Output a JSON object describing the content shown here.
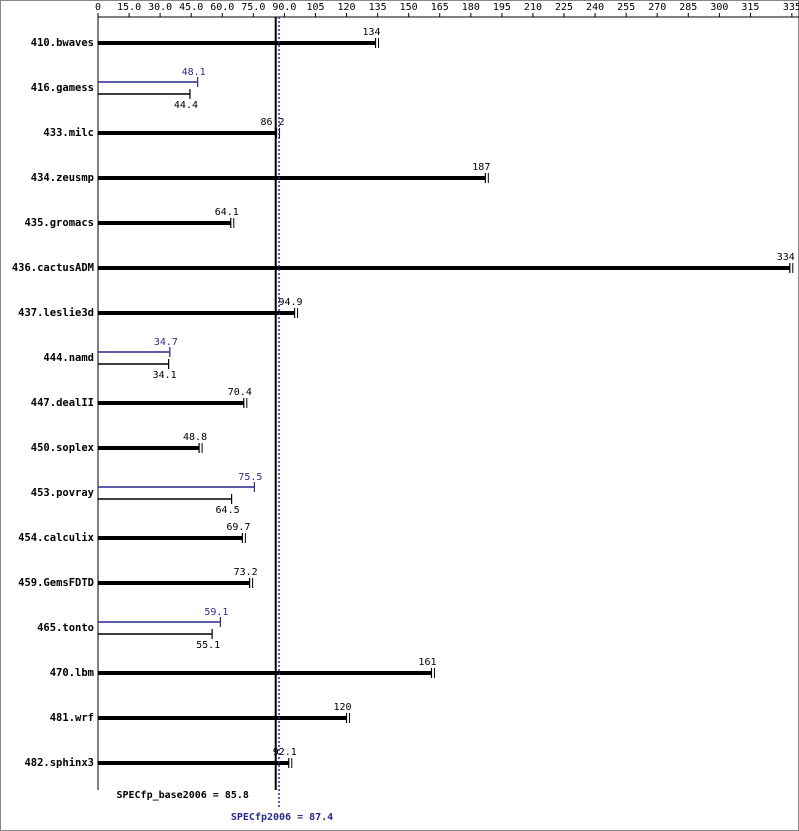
{
  "chart_data": {
    "type": "bar",
    "orientation": "horizontal",
    "categories": [
      "410.bwaves",
      "416.gamess",
      "433.milc",
      "434.zeusmp",
      "435.gromacs",
      "436.cactusADM",
      "437.leslie3d",
      "444.namd",
      "447.dealII",
      "450.soplex",
      "453.povray",
      "454.calculix",
      "459.GemsFDTD",
      "465.tonto",
      "470.lbm",
      "481.wrf",
      "482.sphinx3"
    ],
    "series": [
      {
        "role": "peak",
        "color": "#2a2a8c",
        "values": [
          null,
          48.1,
          null,
          null,
          null,
          null,
          null,
          34.7,
          null,
          null,
          75.5,
          null,
          null,
          59.1,
          null,
          null,
          null
        ]
      },
      {
        "role": "base",
        "color": "#000000",
        "values": [
          134,
          44.4,
          86.2,
          187,
          64.1,
          334,
          94.9,
          34.1,
          70.4,
          48.8,
          64.5,
          69.7,
          73.2,
          55.1,
          161,
          120,
          92.1
        ]
      }
    ],
    "xlim": [
      0,
      337
    ],
    "xticks": [
      0,
      {
        "value": 15,
        "label": "15.0"
      },
      {
        "value": 30,
        "label": "30.0"
      },
      {
        "value": 45,
        "label": "45.0"
      },
      {
        "value": 60,
        "label": "60.0"
      },
      {
        "value": 75,
        "label": "75.0"
      },
      {
        "value": 90,
        "label": "90.0"
      },
      105,
      120,
      135,
      150,
      165,
      180,
      195,
      210,
      225,
      240,
      255,
      270,
      285,
      300,
      315,
      335
    ],
    "reference_lines": [
      {
        "value": 85.8,
        "label": "SPECfp_base2006 = 85.8",
        "color": "#000000",
        "style": "solid"
      },
      {
        "value": 87.4,
        "label": "SPECfp2006 = 87.4",
        "color": "#2a2a8c",
        "style": "dotted"
      }
    ]
  }
}
